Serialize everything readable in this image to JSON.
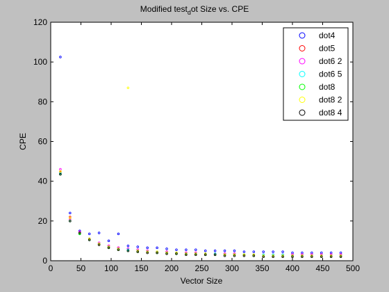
{
  "chart_data": {
    "type": "scatter",
    "title_parts": [
      "Modified test",
      "d",
      "ot Size vs. CPE"
    ],
    "xlabel": "Vector Size",
    "ylabel": "CPE",
    "xlim": [
      0,
      500
    ],
    "ylim": [
      0,
      120
    ],
    "xticks": [
      0,
      50,
      100,
      150,
      200,
      250,
      300,
      350,
      400,
      450,
      500
    ],
    "yticks": [
      0,
      20,
      40,
      60,
      80,
      100,
      120
    ],
    "grid": false,
    "legend_position": "top-right",
    "series": [
      {
        "name": "dot4",
        "color": "#0000ff",
        "x": [
          16,
          32,
          48,
          64,
          80,
          96,
          112,
          128,
          144,
          160,
          176,
          192,
          208,
          224,
          240,
          256,
          272,
          288,
          304,
          320,
          336,
          352,
          368,
          384,
          400,
          416,
          432,
          448,
          464,
          480
        ],
        "y": [
          102.5,
          24,
          15,
          13.5,
          14,
          10,
          13.5,
          7.5,
          7,
          6.5,
          6.5,
          6,
          5.5,
          5.5,
          5.5,
          5,
          5,
          5,
          5,
          4.5,
          4.5,
          4.5,
          4.5,
          4.5,
          4,
          4,
          4,
          4,
          4,
          4
        ]
      },
      {
        "name": "dot5",
        "color": "#ff0000",
        "x": [
          16,
          32,
          48,
          64,
          80,
          96,
          112,
          128,
          144,
          160,
          176,
          192,
          208,
          224,
          240,
          256,
          272,
          288,
          304,
          320,
          336,
          352,
          368,
          384,
          400,
          416,
          432,
          448,
          464,
          480
        ],
        "y": [
          44.5,
          22,
          14,
          11,
          8.5,
          7.5,
          6.5,
          6,
          5.5,
          5,
          4.5,
          4.5,
          4,
          4,
          4,
          3.5,
          3.5,
          3.5,
          3.5,
          3,
          3,
          3,
          3,
          3,
          3,
          3,
          3,
          3,
          3,
          3
        ]
      },
      {
        "name": "dot6 2",
        "color": "#ff00ff",
        "x": [
          16,
          32,
          48,
          64,
          80,
          96,
          112,
          128,
          144,
          160,
          176,
          192,
          208,
          224,
          240,
          256,
          272,
          288,
          304,
          320,
          336,
          352,
          368,
          384,
          400,
          416,
          432,
          448,
          464,
          480
        ],
        "y": [
          46,
          21,
          14.5,
          11,
          9,
          7.5,
          6.5,
          6,
          5.5,
          5,
          4.5,
          4.5,
          4,
          4,
          4,
          3.5,
          3.5,
          3.5,
          3.5,
          3,
          3,
          3,
          3,
          3,
          3,
          3,
          3,
          3,
          3,
          3
        ]
      },
      {
        "name": "dot6 5",
        "color": "#00ffff",
        "x": [
          16,
          32,
          48,
          64,
          80,
          96,
          112,
          128,
          144,
          160,
          176,
          192,
          208,
          224,
          240,
          256,
          272,
          288,
          304,
          320,
          336,
          352,
          368,
          384,
          400,
          416,
          432,
          448,
          464,
          480
        ],
        "y": [
          44,
          20,
          13.5,
          10.5,
          8.5,
          7,
          6,
          5.5,
          5,
          4.5,
          4.5,
          4,
          4,
          3.5,
          3.5,
          3.5,
          3.5,
          3,
          3,
          3,
          3,
          3,
          3,
          3,
          2.5,
          2.5,
          2.5,
          2.5,
          2.5,
          2.5
        ]
      },
      {
        "name": "dot8",
        "color": "#00ff00",
        "x": [
          16,
          32,
          48,
          64,
          80,
          96,
          112,
          128,
          144,
          160,
          176,
          192,
          208,
          224,
          240,
          256,
          272,
          288,
          304,
          320,
          336,
          352,
          368,
          384,
          400,
          416,
          432,
          448,
          464,
          480
        ],
        "y": [
          43.5,
          20,
          13.5,
          10.5,
          8.5,
          6.5,
          5.5,
          5,
          4.5,
          4.5,
          4,
          4,
          3.5,
          3.5,
          3.5,
          3,
          3,
          3,
          3,
          3,
          2.5,
          2.5,
          2.5,
          2.5,
          2.5,
          2.5,
          2.5,
          2.5,
          2.5,
          2.5
        ]
      },
      {
        "name": "dot8 2",
        "color": "#ffff00",
        "x": [
          16,
          32,
          48,
          64,
          80,
          96,
          112,
          128,
          144,
          160,
          176,
          192,
          208,
          224,
          240,
          256,
          272,
          288,
          304,
          320,
          336,
          352,
          368,
          384,
          400,
          416,
          432,
          448,
          464,
          480
        ],
        "y": [
          45,
          21.5,
          14,
          11,
          8.5,
          7,
          6,
          87,
          5,
          4.5,
          4.5,
          4,
          4,
          3.5,
          3.5,
          3.5,
          3,
          3,
          3,
          3,
          3,
          2.5,
          2.5,
          2.5,
          2.5,
          2.5,
          2.5,
          2.5,
          2.5,
          2.5
        ]
      },
      {
        "name": "dot8 4",
        "color": "#000000",
        "x": [
          16,
          32,
          48,
          64,
          80,
          96,
          112,
          128,
          144,
          160,
          176,
          192,
          208,
          224,
          240,
          256,
          272,
          288,
          304,
          320,
          336,
          352,
          368,
          384,
          400,
          416,
          432,
          448,
          464,
          480
        ],
        "y": [
          43.5,
          20,
          14,
          10.5,
          8,
          6.5,
          5.5,
          5,
          4.5,
          4,
          4,
          3.5,
          3.5,
          3,
          3,
          3,
          3,
          2.5,
          2.5,
          2.5,
          2.5,
          2,
          2,
          2,
          2,
          2,
          2,
          2,
          2,
          2
        ]
      }
    ]
  }
}
